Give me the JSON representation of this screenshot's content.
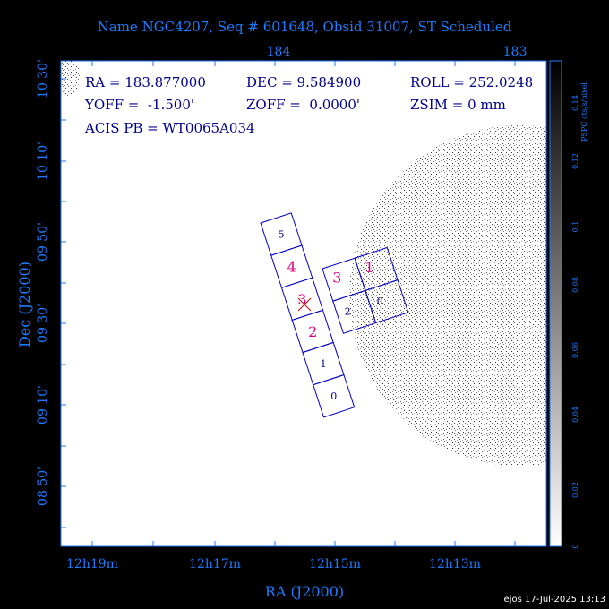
{
  "header": {
    "title": "Name NGC4207, Seq # 601648, Obsid 31007, ST Scheduled"
  },
  "axes": {
    "top_labels": [
      "184",
      "183"
    ],
    "left_labels": [
      "10 30'",
      "10 10'",
      "09 50'",
      "09 30'",
      "09 10'",
      "08 50'"
    ],
    "bottom_labels": [
      "12h19m",
      "12h17m",
      "12h15m",
      "12h13m"
    ],
    "x_title": "RA (J2000)",
    "y_title": "Dec (J2000)"
  },
  "info": {
    "row1": [
      "RA = 183.877000",
      "DEC = 9.584900",
      "ROLL = 252.0248"
    ],
    "row2": [
      "YOFF =  -1.500'",
      "ZOFF =  0.0000'",
      "ZSIM = 0 mm"
    ],
    "row3": "ACIS PB = WT0065A034"
  },
  "colorbar": {
    "title": "PSPC cts/s/pixel",
    "labels": [
      "0",
      "0.02",
      "0.04",
      "0.06",
      "0.08",
      "0.1",
      "0.12",
      "0.14"
    ]
  },
  "chips": {
    "s_array": [
      "5",
      "4",
      "3",
      "2",
      "1",
      "0"
    ],
    "i_array": [
      "3",
      "1",
      "2",
      "0"
    ]
  },
  "footer": "ejos 17-Jul-2025 13:13"
}
